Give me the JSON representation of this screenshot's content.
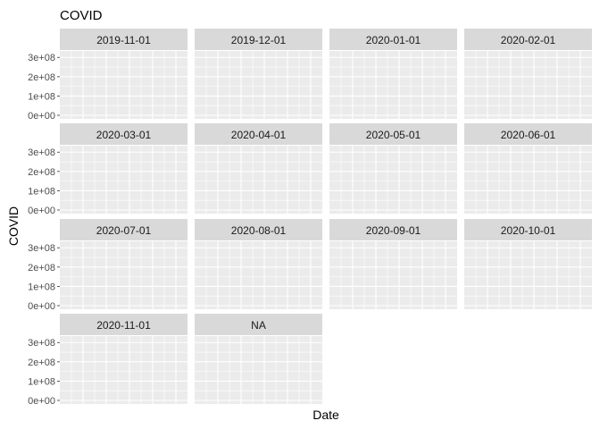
{
  "chart_data": {
    "type": "bar",
    "title": "COVID",
    "xlabel": "Date",
    "ylabel": "COVID",
    "ylim": [
      0,
      300000000
    ],
    "y_ticks": [
      "0e+00",
      "1e+08",
      "2e+08",
      "3e+08"
    ],
    "grid": true,
    "facets": [
      "2019-11-01",
      "2019-12-01",
      "2020-01-01",
      "2020-02-01",
      "2020-03-01",
      "2020-04-01",
      "2020-05-01",
      "2020-06-01",
      "2020-07-01",
      "2020-08-01",
      "2020-09-01",
      "2020-10-01",
      "2020-11-01",
      "NA"
    ],
    "facet_columns": 4,
    "colors": {
      "panel_background": "#ebebeb",
      "grid": "#ffffff",
      "strip_background": "#d9d9d9",
      "text": "#000000",
      "tick_text": "#4d4d4d"
    }
  }
}
